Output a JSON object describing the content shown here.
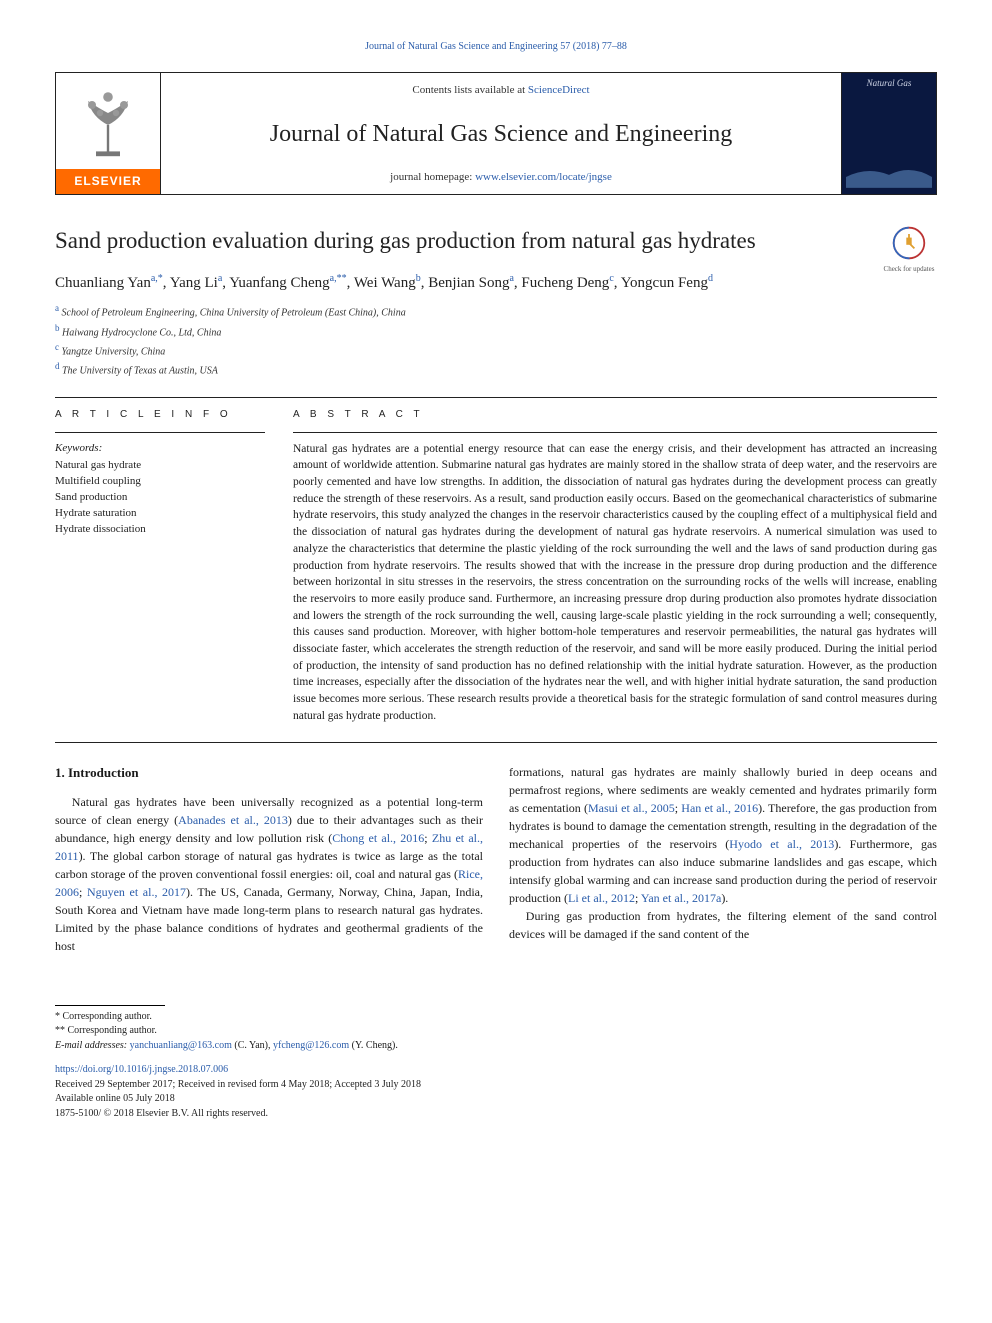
{
  "running_header": "Journal of Natural Gas Science and Engineering 57 (2018) 77–88",
  "banner": {
    "elsevier_label": "ELSEVIER",
    "contents_prefix": "Contents lists available at ",
    "contents_link": "ScienceDirect",
    "journal_title": "Journal of Natural Gas Science and Engineering",
    "homepage_prefix": "journal homepage: ",
    "homepage_url": "www.elsevier.com/locate/jngse",
    "cover_text": "Natural Gas"
  },
  "check_updates_label": "Check for updates",
  "article_title": "Sand production evaluation during gas production from natural gas hydrates",
  "authors_html_parts": [
    {
      "name": "Chuanliang Yan",
      "sup": "a,*"
    },
    {
      "name": "Yang Li",
      "sup": "a"
    },
    {
      "name": "Yuanfang Cheng",
      "sup": "a,**"
    },
    {
      "name": "Wei Wang",
      "sup": "b"
    },
    {
      "name": "Benjian Song",
      "sup": "a"
    },
    {
      "name": "Fucheng Deng",
      "sup": "c"
    },
    {
      "name": "Yongcun Feng",
      "sup": "d"
    }
  ],
  "affiliations": [
    {
      "sup": "a",
      "text": "School of Petroleum Engineering, China University of Petroleum (East China), China"
    },
    {
      "sup": "b",
      "text": "Haiwang Hydrocyclone Co., Ltd, China"
    },
    {
      "sup": "c",
      "text": "Yangtze University, China"
    },
    {
      "sup": "d",
      "text": "The University of Texas at Austin, USA"
    }
  ],
  "article_info_heading": "A R T I C L E  I N F O",
  "keywords_heading": "Keywords:",
  "keywords": [
    "Natural gas hydrate",
    "Multifield coupling",
    "Sand production",
    "Hydrate saturation",
    "Hydrate dissociation"
  ],
  "abstract_heading": "A B S T R A C T",
  "abstract_text": "Natural gas hydrates are a potential energy resource that can ease the energy crisis, and their development has attracted an increasing amount of worldwide attention. Submarine natural gas hydrates are mainly stored in the shallow strata of deep water, and the reservoirs are poorly cemented and have low strengths. In addition, the dissociation of natural gas hydrates during the development process can greatly reduce the strength of these reservoirs. As a result, sand production easily occurs. Based on the geomechanical characteristics of submarine hydrate reservoirs, this study analyzed the changes in the reservoir characteristics caused by the coupling effect of a multiphysical field and the dissociation of natural gas hydrates during the development of natural gas hydrate reservoirs. A numerical simulation was used to analyze the characteristics that determine the plastic yielding of the rock surrounding the well and the laws of sand production during gas production from hydrate reservoirs. The results showed that with the increase in the pressure drop during production and the difference between horizontal in situ stresses in the reservoirs, the stress concentration on the surrounding rocks of the wells will increase, enabling the reservoirs to more easily produce sand. Furthermore, an increasing pressure drop during production also promotes hydrate dissociation and lowers the strength of the rock surrounding the well, causing large-scale plastic yielding in the rock surrounding a well; consequently, this causes sand production. Moreover, with higher bottom-hole temperatures and reservoir permeabilities, the natural gas hydrates will dissociate faster, which accelerates the strength reduction of the reservoir, and sand will be more easily produced. During the initial period of production, the intensity of sand production has no defined relationship with the initial hydrate saturation. However, as the production time increases, especially after the dissociation of the hydrates near the well, and with higher initial hydrate saturation, the sand production issue becomes more serious. These research results provide a theoretical basis for the strategic formulation of sand control measures during natural gas hydrate production.",
  "section_heading": "1. Introduction",
  "body_col1_p1_pre": "Natural gas hydrates have been universally recognized as a potential long-term source of clean energy (",
  "cite1": "Abanades et al., 2013",
  "body_col1_p1_mid1": ") due to their advantages such as their abundance, high energy density and low pollution risk (",
  "cite2": "Chong et al., 2016",
  "sep_semi": "; ",
  "cite3": "Zhu et al., 2011",
  "body_col1_p1_mid2": "). The global carbon storage of natural gas hydrates is twice as large as the total carbon storage of the proven conventional fossil energies: oil, coal and natural gas (",
  "cite4": "Rice, 2006",
  "cite5": "Nguyen et al., 2017",
  "body_col1_p1_end": "). The US, Canada, Germany, Norway, China, Japan, India, South Korea and Vietnam have made long-term plans to research natural gas hydrates. Limited by the phase balance conditions of hydrates and geothermal gradients of the host",
  "body_col2_p1_pre": "formations, natural gas hydrates are mainly shallowly buried in deep oceans and permafrost regions, where sediments are weakly cemented and hydrates primarily form as cementation (",
  "cite6": "Masui et al., 2005",
  "cite7": "Han et al., 2016",
  "body_col2_p1_mid": "). Therefore, the gas production from hydrates is bound to damage the cementation strength, resulting in the degradation of the mechanical properties of the reservoirs (",
  "cite8": "Hyodo et al., 2013",
  "body_col2_p1_mid2": "). Furthermore, gas production from hydrates can also induce submarine landslides and gas escape, which intensify global warming and can increase sand production during the period of reservoir production (",
  "cite9": "Li et al., 2012",
  "cite10": "Yan et al., 2017a",
  "body_col2_p1_end": ").",
  "body_col2_p2": "During gas production from hydrates, the filtering element of the sand control devices will be damaged if the sand content of the",
  "footer": {
    "corr1": "* Corresponding author.",
    "corr2": "** Corresponding author.",
    "email_label": "E-mail addresses: ",
    "email1": "yanchuanliang@163.com",
    "email1_who": " (C. Yan), ",
    "email2": "yfcheng@126.com",
    "email2_who": " (Y. Cheng).",
    "doi": "https://doi.org/10.1016/j.jngse.2018.07.006",
    "received": "Received 29 September 2017; Received in revised form 4 May 2018; Accepted 3 July 2018",
    "online": "Available online 05 July 2018",
    "copyright": "1875-5100/ © 2018 Elsevier B.V. All rights reserved."
  },
  "colors": {
    "link": "#2a5caa",
    "elsevier_orange": "#ff6a00",
    "cover_bg": "#0a1840"
  }
}
